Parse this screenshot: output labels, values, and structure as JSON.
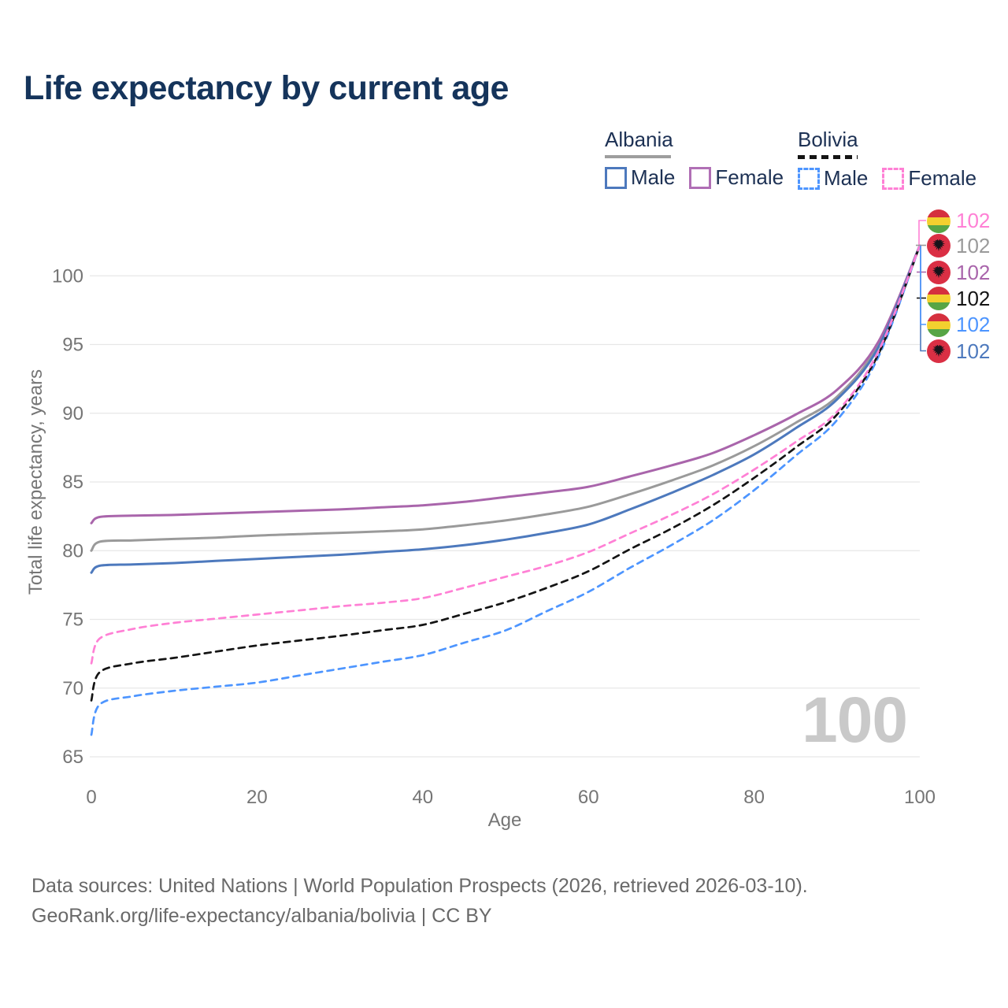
{
  "title": "Life expectancy by current age",
  "legend": {
    "groups": [
      {
        "country": "Albania",
        "line_style": "solid",
        "underline_color": "#9e9e9e",
        "items": [
          {
            "label": "Male",
            "color": "#4d79bd"
          },
          {
            "label": "Female",
            "color": "#b06fb5"
          }
        ]
      },
      {
        "country": "Bolivia",
        "line_style": "dashed",
        "underline_color": "#141414",
        "items": [
          {
            "label": "Male",
            "color": "#4d95ff"
          },
          {
            "label": "Female",
            "color": "#ff80d5"
          }
        ]
      }
    ]
  },
  "chart_data": {
    "type": "line",
    "title": "Life expectancy by current age",
    "xlabel": "Age",
    "ylabel": "Total life expectancy, years",
    "xlim": [
      0,
      100
    ],
    "ylim": [
      65,
      102.5
    ],
    "xticks": [
      0,
      20,
      40,
      60,
      80,
      100
    ],
    "yticks": [
      65,
      70,
      75,
      80,
      85,
      90,
      95,
      100
    ],
    "grid": "horizontal",
    "x": [
      0,
      1,
      5,
      10,
      15,
      20,
      25,
      30,
      35,
      40,
      45,
      50,
      55,
      60,
      65,
      70,
      75,
      80,
      85,
      90,
      95,
      100
    ],
    "series": [
      {
        "name": "Albania All",
        "country": "Albania",
        "sex": "All",
        "color": "#9a9a9a",
        "dash": "solid",
        "values": [
          80.0,
          80.65,
          80.75,
          80.85,
          80.95,
          81.1,
          81.2,
          81.3,
          81.4,
          81.55,
          81.85,
          82.2,
          82.65,
          83.2,
          84.1,
          85.1,
          86.2,
          87.6,
          89.3,
          91.2,
          95.0,
          102.2
        ]
      },
      {
        "name": "Albania Female",
        "country": "Albania",
        "sex": "Female",
        "color": "#a965ab",
        "dash": "solid",
        "values": [
          82.0,
          82.45,
          82.55,
          82.6,
          82.7,
          82.8,
          82.9,
          83.0,
          83.15,
          83.3,
          83.55,
          83.9,
          84.25,
          84.65,
          85.4,
          86.2,
          87.1,
          88.4,
          89.9,
          91.7,
          95.2,
          102.2
        ]
      },
      {
        "name": "Albania Male",
        "country": "Albania",
        "sex": "Male",
        "color": "#4d79bd",
        "dash": "solid",
        "values": [
          78.4,
          78.9,
          79.0,
          79.1,
          79.25,
          79.4,
          79.55,
          79.7,
          79.9,
          80.1,
          80.4,
          80.8,
          81.3,
          81.9,
          83.0,
          84.2,
          85.5,
          87.0,
          88.9,
          91.0,
          94.8,
          102.2
        ]
      },
      {
        "name": "Bolivia Male",
        "country": "Bolivia",
        "sex": "Male",
        "color": "#4d95ff",
        "dash": "dashed",
        "values": [
          66.6,
          68.8,
          69.4,
          69.8,
          70.1,
          70.4,
          70.9,
          71.4,
          71.9,
          72.4,
          73.3,
          74.2,
          75.6,
          77.0,
          78.75,
          80.4,
          82.2,
          84.4,
          86.9,
          89.5,
          94.1,
          102.2
        ]
      },
      {
        "name": "Bolivia All",
        "country": "Bolivia",
        "sex": "All",
        "color": "#141414",
        "dash": "dashed",
        "values": [
          69.1,
          71.15,
          71.8,
          72.2,
          72.65,
          73.1,
          73.45,
          73.8,
          74.2,
          74.6,
          75.4,
          76.25,
          77.3,
          78.5,
          80.1,
          81.6,
          83.3,
          85.3,
          87.5,
          89.9,
          94.3,
          102.2
        ]
      },
      {
        "name": "Bolivia Female",
        "country": "Bolivia",
        "sex": "Female",
        "color": "#ff80d5",
        "dash": "dashed",
        "values": [
          71.8,
          73.6,
          74.3,
          74.75,
          75.05,
          75.35,
          75.65,
          75.95,
          76.2,
          76.55,
          77.3,
          78.1,
          78.9,
          79.9,
          81.25,
          82.6,
          84.1,
          85.9,
          87.9,
          90.1,
          94.5,
          102.2
        ]
      }
    ],
    "end_value_at_age_100": 102
  },
  "end_labels": [
    {
      "flag": "bolivia",
      "series": "Bolivia Female",
      "value": "102",
      "color": "#ff80d5"
    },
    {
      "flag": "albania",
      "series": "Albania All",
      "value": "102",
      "color": "#9a9a9a"
    },
    {
      "flag": "albania",
      "series": "Albania Female",
      "value": "102",
      "color": "#a965ab"
    },
    {
      "flag": "bolivia",
      "series": "Bolivia All",
      "value": "102",
      "color": "#141414"
    },
    {
      "flag": "bolivia",
      "series": "Bolivia Male",
      "value": "102",
      "color": "#4d95ff"
    },
    {
      "flag": "albania",
      "series": "Albania Male",
      "value": "102",
      "color": "#4d79bd"
    }
  ],
  "watermark": "100",
  "footer": {
    "line1": "Data sources: United Nations | World Population Prospects (2026, retrieved 2026-03-10).",
    "line2": "GeoRank.org/life-expectancy/albania/bolivia | CC BY"
  }
}
